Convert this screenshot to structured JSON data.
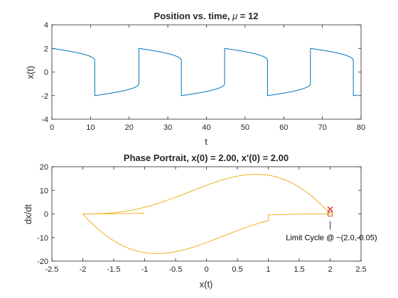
{
  "chart_data": [
    {
      "type": "line",
      "title_prefix": "Position vs. time, ",
      "title_mu_symbol": "μ",
      "title_suffix": " = 12",
      "xlabel": "t",
      "ylabel": "x(t)",
      "xlim": [
        0,
        80
      ],
      "ylim": [
        -4,
        4
      ],
      "xticks": [
        "0",
        "10",
        "20",
        "30",
        "40",
        "50",
        "60",
        "70",
        "80"
      ],
      "yticks": [
        "-4",
        "-2",
        "0",
        "2",
        "4"
      ],
      "grid": false,
      "mu": 12,
      "initial_conditions": {
        "x0": 2.0,
        "v0": 2.0
      },
      "t_end": 79.2,
      "series": [
        {
          "color": "#0072BD",
          "shape": "relaxation oscillation",
          "jump_times": [
            11.1,
            22.5,
            33.5,
            44.7,
            55.8,
            66.9,
            78.0
          ],
          "amplitude": 2.0,
          "slow_branch_end": 1.0
        }
      ]
    },
    {
      "type": "line",
      "title": "Phase Portrait, x(0) = 2.00, x'(0) = 2.00",
      "xlabel": "x(t)",
      "ylabel": "dx/dt",
      "xlim": [
        -2.5,
        2.5
      ],
      "ylim": [
        -20,
        20
      ],
      "xticks": [
        "-2.5",
        "-2",
        "-1.5",
        "-1",
        "-0.5",
        "0",
        "0.5",
        "1",
        "1.5",
        "2",
        "2.5"
      ],
      "yticks": [
        "-20",
        "-10",
        "0",
        "10",
        "20"
      ],
      "grid": false,
      "series": [
        {
          "color": "#EDB120",
          "shape": "limit cycle",
          "fast_branch_peak": {
            "x": 1.0,
            "y": 16.8
          },
          "fast_branch_trough": {
            "x": -1.0,
            "y": -16.8
          },
          "endpoints": [
            -2.0,
            2.0
          ]
        }
      ],
      "markers": [
        {
          "kind": "x",
          "x": 2.0,
          "y": 2.0,
          "color": "#E01010"
        },
        {
          "kind": "square",
          "x": 2.0,
          "y": -0.05,
          "color": "#D95319"
        }
      ],
      "annotation": {
        "text": "Limit Cycle @ ~(2.0,-0.05)",
        "x": 2.0,
        "y": -0.05
      }
    }
  ]
}
